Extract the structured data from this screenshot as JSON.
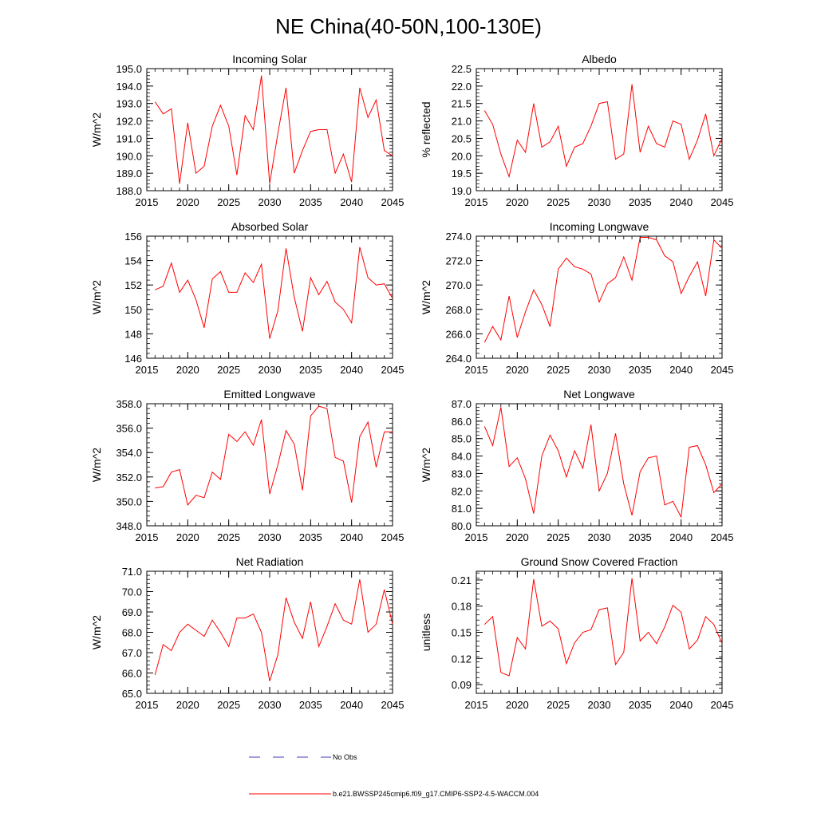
{
  "title": "NE China(40-50N,100-130E)",
  "legend": {
    "entries": [
      {
        "label": "No Obs",
        "color": "#3b3bb8",
        "dash": true
      },
      {
        "label": "b.e21.BWSSP245cmip6.f09_g17.CMIP6-SSP2-4.5-WACCM.004",
        "color": "#ff0000",
        "dash": false
      }
    ]
  },
  "chart_data": [
    {
      "type": "line",
      "title": "Incoming Solar",
      "ylabel": "W/m^2",
      "xlim": [
        2015,
        2045
      ],
      "ylim": [
        188.0,
        195.0
      ],
      "yticks": [
        188.0,
        189.0,
        190.0,
        191.0,
        192.0,
        193.0,
        194.0,
        195.0
      ],
      "ytick_labels": [
        "188.0",
        "189.0",
        "190.0",
        "191.0",
        "192.0",
        "193.0",
        "194.0",
        "195.0"
      ],
      "xticks": [
        2015,
        2020,
        2025,
        2030,
        2035,
        2040,
        2045
      ],
      "x": [
        2016,
        2017,
        2018,
        2019,
        2020,
        2021,
        2022,
        2023,
        2024,
        2025,
        2026,
        2027,
        2028,
        2029,
        2030,
        2031,
        2032,
        2033,
        2034,
        2035,
        2036,
        2037,
        2038,
        2039,
        2040,
        2041,
        2042,
        2043,
        2044,
        2045
      ],
      "series": [
        {
          "color": "#ff0000",
          "values": [
            193.1,
            192.4,
            192.7,
            188.4,
            191.9,
            189.0,
            189.4,
            191.7,
            192.9,
            191.7,
            188.9,
            192.3,
            191.5,
            194.6,
            188.4,
            191.3,
            193.9,
            189.0,
            190.3,
            191.4,
            191.5,
            191.5,
            189.0,
            190.1,
            188.5,
            193.9,
            192.2,
            193.2,
            190.3,
            190.0
          ]
        }
      ]
    },
    {
      "type": "line",
      "title": "Albedo",
      "ylabel": "% reflected",
      "xlim": [
        2015,
        2045
      ],
      "ylim": [
        19.0,
        22.5
      ],
      "yticks": [
        19.0,
        19.5,
        20.0,
        20.5,
        21.0,
        21.5,
        22.0,
        22.5
      ],
      "ytick_labels": [
        "19.0",
        "19.5",
        "20.0",
        "20.5",
        "21.0",
        "21.5",
        "22.0",
        "22.5"
      ],
      "xticks": [
        2015,
        2020,
        2025,
        2030,
        2035,
        2040,
        2045
      ],
      "x": [
        2016,
        2017,
        2018,
        2019,
        2020,
        2021,
        2022,
        2023,
        2024,
        2025,
        2026,
        2027,
        2028,
        2029,
        2030,
        2031,
        2032,
        2033,
        2034,
        2035,
        2036,
        2037,
        2038,
        2039,
        2040,
        2041,
        2042,
        2043,
        2044,
        2045
      ],
      "series": [
        {
          "color": "#ff0000",
          "values": [
            21.3,
            20.9,
            20.05,
            19.4,
            20.45,
            20.1,
            21.5,
            20.25,
            20.4,
            20.85,
            19.7,
            20.25,
            20.35,
            20.85,
            21.5,
            21.55,
            19.9,
            20.05,
            22.05,
            20.1,
            20.85,
            20.35,
            20.25,
            21.0,
            20.9,
            19.9,
            20.45,
            21.2,
            20.0,
            20.5
          ]
        }
      ]
    },
    {
      "type": "line",
      "title": "Absorbed Solar",
      "ylabel": "W/m^2",
      "xlim": [
        2015,
        2045
      ],
      "ylim": [
        146,
        156
      ],
      "yticks": [
        146,
        148,
        150,
        152,
        154,
        156
      ],
      "ytick_labels": [
        "146",
        "148",
        "150",
        "152",
        "154",
        "156"
      ],
      "xticks": [
        2015,
        2020,
        2025,
        2030,
        2035,
        2040,
        2045
      ],
      "x": [
        2016,
        2017,
        2018,
        2019,
        2020,
        2021,
        2022,
        2023,
        2024,
        2025,
        2026,
        2027,
        2028,
        2029,
        2030,
        2031,
        2032,
        2033,
        2034,
        2035,
        2036,
        2037,
        2038,
        2039,
        2040,
        2041,
        2042,
        2043,
        2044,
        2045
      ],
      "series": [
        {
          "color": "#ff0000",
          "values": [
            151.6,
            151.9,
            153.8,
            151.4,
            152.4,
            150.8,
            148.5,
            152.5,
            153.1,
            151.4,
            151.4,
            153.0,
            152.2,
            153.7,
            147.6,
            149.9,
            155.0,
            151.0,
            148.2,
            152.6,
            151.2,
            152.3,
            150.6,
            150.0,
            148.9,
            155.1,
            152.6,
            152.0,
            152.1,
            150.9
          ]
        }
      ]
    },
    {
      "type": "line",
      "title": "Incoming Longwave",
      "ylabel": "W/m^2",
      "xlim": [
        2015,
        2045
      ],
      "ylim": [
        264.0,
        274.0
      ],
      "yticks": [
        264.0,
        266.0,
        268.0,
        270.0,
        272.0,
        274.0
      ],
      "ytick_labels": [
        "264.0",
        "266.0",
        "268.0",
        "270.0",
        "272.0",
        "274.0"
      ],
      "xticks": [
        2015,
        2020,
        2025,
        2030,
        2035,
        2040,
        2045
      ],
      "x": [
        2016,
        2017,
        2018,
        2019,
        2020,
        2021,
        2022,
        2023,
        2024,
        2025,
        2026,
        2027,
        2028,
        2029,
        2030,
        2031,
        2032,
        2033,
        2034,
        2035,
        2036,
        2037,
        2038,
        2039,
        2040,
        2041,
        2042,
        2043,
        2044,
        2045
      ],
      "series": [
        {
          "color": "#ff0000",
          "values": [
            265.3,
            266.6,
            265.5,
            269.1,
            265.7,
            267.8,
            269.6,
            268.4,
            266.6,
            271.3,
            272.2,
            271.5,
            271.3,
            270.9,
            268.6,
            270.1,
            270.6,
            272.3,
            270.4,
            273.9,
            273.9,
            273.7,
            272.4,
            271.9,
            269.3,
            270.7,
            271.9,
            269.1,
            273.7,
            273.0
          ]
        }
      ]
    },
    {
      "type": "line",
      "title": "Emitted Longwave",
      "ylabel": "W/m^2",
      "xlim": [
        2015,
        2045
      ],
      "ylim": [
        348.0,
        358.0
      ],
      "yticks": [
        348.0,
        350.0,
        352.0,
        354.0,
        356.0,
        358.0
      ],
      "ytick_labels": [
        "348.0",
        "350.0",
        "352.0",
        "354.0",
        "356.0",
        "358.0"
      ],
      "xticks": [
        2015,
        2020,
        2025,
        2030,
        2035,
        2040,
        2045
      ],
      "x": [
        2016,
        2017,
        2018,
        2019,
        2020,
        2021,
        2022,
        2023,
        2024,
        2025,
        2026,
        2027,
        2028,
        2029,
        2030,
        2031,
        2032,
        2033,
        2034,
        2035,
        2036,
        2037,
        2038,
        2039,
        2040,
        2041,
        2042,
        2043,
        2044,
        2045
      ],
      "series": [
        {
          "color": "#ff0000",
          "values": [
            351.1,
            351.2,
            352.4,
            352.6,
            349.7,
            350.5,
            350.3,
            352.4,
            351.8,
            355.5,
            354.9,
            355.7,
            354.6,
            356.7,
            350.6,
            353.0,
            355.8,
            354.7,
            350.9,
            357.0,
            357.8,
            357.6,
            353.6,
            353.3,
            349.9,
            355.3,
            356.5,
            352.8,
            355.7,
            355.7
          ]
        }
      ]
    },
    {
      "type": "line",
      "title": "Net Longwave",
      "ylabel": "W/m^2",
      "xlim": [
        2015,
        2045
      ],
      "ylim": [
        80.0,
        87.0
      ],
      "yticks": [
        80.0,
        81.0,
        82.0,
        83.0,
        84.0,
        85.0,
        86.0,
        87.0
      ],
      "ytick_labels": [
        "80.0",
        "81.0",
        "82.0",
        "83.0",
        "84.0",
        "85.0",
        "86.0",
        "87.0"
      ],
      "xticks": [
        2015,
        2020,
        2025,
        2030,
        2035,
        2040,
        2045
      ],
      "x": [
        2016,
        2017,
        2018,
        2019,
        2020,
        2021,
        2022,
        2023,
        2024,
        2025,
        2026,
        2027,
        2028,
        2029,
        2030,
        2031,
        2032,
        2033,
        2034,
        2035,
        2036,
        2037,
        2038,
        2039,
        2040,
        2041,
        2042,
        2043,
        2044,
        2045
      ],
      "series": [
        {
          "color": "#ff0000",
          "values": [
            85.7,
            84.6,
            86.8,
            83.4,
            83.9,
            82.7,
            80.7,
            84.0,
            85.2,
            84.3,
            82.8,
            84.3,
            83.3,
            85.8,
            82.0,
            83.0,
            85.3,
            82.4,
            80.6,
            83.1,
            83.9,
            84.0,
            81.2,
            81.4,
            80.5,
            84.5,
            84.6,
            83.5,
            81.9,
            82.4
          ]
        }
      ]
    },
    {
      "type": "line",
      "title": "Net Radiation",
      "ylabel": "W/m^2",
      "xlim": [
        2015,
        2045
      ],
      "ylim": [
        65.0,
        71.0
      ],
      "yticks": [
        65.0,
        66.0,
        67.0,
        68.0,
        69.0,
        70.0,
        71.0
      ],
      "ytick_labels": [
        "65.0",
        "66.0",
        "67.0",
        "68.0",
        "69.0",
        "70.0",
        "71.0"
      ],
      "xticks": [
        2015,
        2020,
        2025,
        2030,
        2035,
        2040,
        2045
      ],
      "x": [
        2016,
        2017,
        2018,
        2019,
        2020,
        2021,
        2022,
        2023,
        2024,
        2025,
        2026,
        2027,
        2028,
        2029,
        2030,
        2031,
        2032,
        2033,
        2034,
        2035,
        2036,
        2037,
        2038,
        2039,
        2040,
        2041,
        2042,
        2043,
        2044,
        2045
      ],
      "series": [
        {
          "color": "#ff0000",
          "values": [
            65.9,
            67.4,
            67.1,
            68.0,
            68.4,
            68.1,
            67.8,
            68.6,
            68.0,
            67.3,
            68.7,
            68.7,
            68.9,
            68.0,
            65.6,
            66.9,
            69.7,
            68.5,
            67.7,
            69.5,
            67.3,
            68.3,
            69.4,
            68.6,
            68.4,
            70.6,
            68.0,
            68.4,
            70.1,
            68.4
          ]
        }
      ]
    },
    {
      "type": "line",
      "title": "Ground Snow Covered Fraction",
      "ylabel": "unitless",
      "xlim": [
        2015,
        2045
      ],
      "ylim": [
        0.08,
        0.22
      ],
      "yticks": [
        0.09,
        0.12,
        0.15,
        0.18,
        0.21
      ],
      "ytick_labels": [
        "0.09",
        "0.12",
        "0.15",
        "0.18",
        "0.21"
      ],
      "xticks": [
        2015,
        2020,
        2025,
        2030,
        2035,
        2040,
        2045
      ],
      "x": [
        2016,
        2017,
        2018,
        2019,
        2020,
        2021,
        2022,
        2023,
        2024,
        2025,
        2026,
        2027,
        2028,
        2029,
        2030,
        2031,
        2032,
        2033,
        2034,
        2035,
        2036,
        2037,
        2038,
        2039,
        2040,
        2041,
        2042,
        2043,
        2044,
        2045
      ],
      "series": [
        {
          "color": "#ff0000",
          "values": [
            0.159,
            0.168,
            0.104,
            0.1,
            0.144,
            0.131,
            0.211,
            0.157,
            0.163,
            0.154,
            0.114,
            0.138,
            0.15,
            0.153,
            0.176,
            0.178,
            0.113,
            0.127,
            0.212,
            0.14,
            0.15,
            0.137,
            0.156,
            0.181,
            0.173,
            0.131,
            0.141,
            0.168,
            0.159,
            0.137
          ]
        }
      ]
    }
  ]
}
